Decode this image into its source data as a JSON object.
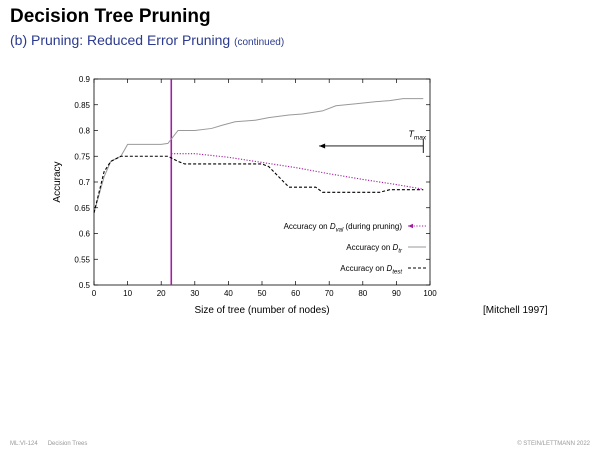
{
  "slide": {
    "title": "Decision Tree Pruning",
    "subtitle": "(b) Pruning: Reduced Error Pruning",
    "subtitle_note": "(continued)",
    "citation": "[Mitchell 1997]",
    "footer_id": "ML:VI-124",
    "footer_topic": "Decision Trees",
    "footer_copyright": "© STEIN/LETTMANN 2022"
  },
  "chart_data": {
    "type": "line",
    "xlabel": "Size of tree (number of nodes)",
    "ylabel": "Accuracy",
    "xlim": [
      0,
      100
    ],
    "ylim": [
      0.5,
      0.9
    ],
    "xticks": [
      0,
      10,
      20,
      30,
      40,
      50,
      60,
      70,
      80,
      90,
      100
    ],
    "yticks": [
      0.5,
      0.55,
      0.6,
      0.65,
      0.7,
      0.75,
      0.8,
      0.85,
      0.9
    ],
    "pruning_line_x": 23,
    "tmax": {
      "label": "T",
      "subscript": "max",
      "x_start": 67,
      "x_end": 98,
      "y": 0.77
    },
    "series": [
      {
        "name": "Accuracy on D_tr",
        "style": "solid",
        "color": "#999999",
        "points": [
          [
            0,
            0.64
          ],
          [
            3,
            0.71
          ],
          [
            5,
            0.74
          ],
          [
            8,
            0.75
          ],
          [
            10,
            0.773
          ],
          [
            15,
            0.773
          ],
          [
            20,
            0.773
          ],
          [
            22,
            0.775
          ],
          [
            25,
            0.8
          ],
          [
            30,
            0.8
          ],
          [
            35,
            0.804
          ],
          [
            38,
            0.81
          ],
          [
            42,
            0.817
          ],
          [
            48,
            0.82
          ],
          [
            52,
            0.825
          ],
          [
            58,
            0.83
          ],
          [
            62,
            0.832
          ],
          [
            68,
            0.838
          ],
          [
            72,
            0.848
          ],
          [
            78,
            0.852
          ],
          [
            84,
            0.856
          ],
          [
            88,
            0.858
          ],
          [
            92,
            0.862
          ],
          [
            98,
            0.862
          ]
        ]
      },
      {
        "name": "Accuracy on D_test",
        "style": "dashed",
        "color": "#000000",
        "points": [
          [
            0,
            0.64
          ],
          [
            3,
            0.72
          ],
          [
            5,
            0.74
          ],
          [
            8,
            0.75
          ],
          [
            10,
            0.75
          ],
          [
            15,
            0.75
          ],
          [
            20,
            0.75
          ],
          [
            22,
            0.75
          ],
          [
            25,
            0.74
          ],
          [
            27,
            0.735
          ],
          [
            32,
            0.735
          ],
          [
            40,
            0.735
          ],
          [
            50,
            0.735
          ],
          [
            52,
            0.73
          ],
          [
            55,
            0.71
          ],
          [
            58,
            0.69
          ],
          [
            62,
            0.69
          ],
          [
            66,
            0.69
          ],
          [
            68,
            0.68
          ],
          [
            72,
            0.68
          ],
          [
            85,
            0.68
          ],
          [
            88,
            0.685
          ],
          [
            92,
            0.685
          ],
          [
            98,
            0.685
          ]
        ]
      },
      {
        "name": "Accuracy on D_val (during pruning)",
        "style": "dotted",
        "color": "#a020a0",
        "points": [
          [
            23,
            0.755
          ],
          [
            30,
            0.755
          ],
          [
            40,
            0.748
          ],
          [
            50,
            0.738
          ],
          [
            60,
            0.728
          ],
          [
            70,
            0.716
          ],
          [
            80,
            0.705
          ],
          [
            90,
            0.695
          ],
          [
            98,
            0.686
          ]
        ]
      }
    ],
    "legend": [
      {
        "prefix": "Accuracy on ",
        "italic": "D",
        "sub": "val",
        "suffix": "(during pruning)",
        "style": "dotted-arrow",
        "color": "#a020a0"
      },
      {
        "prefix": "Accuracy on ",
        "italic": "D",
        "sub": "tr",
        "suffix": "",
        "style": "solid",
        "color": "#999999"
      },
      {
        "prefix": "Accuracy on ",
        "italic": "D",
        "sub": "test",
        "suffix": "",
        "style": "dashed",
        "color": "#000000"
      }
    ]
  }
}
